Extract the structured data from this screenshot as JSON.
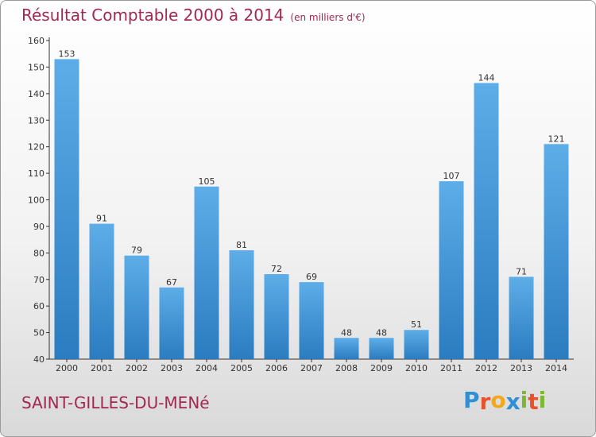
{
  "title": "Résultat Comptable 2000 à 2014",
  "unit": "(en milliers d'€)",
  "place": "SAINT-GILLES-DU-MENé",
  "logo": {
    "letters": [
      "P",
      "r",
      "o",
      "x",
      "i",
      "t",
      "i"
    ],
    "colors": [
      "#2f8fd6",
      "#e8512b",
      "#f2a81d",
      "#2f8fd6",
      "#7cb82f",
      "#e8512b",
      "#7cb82f"
    ]
  },
  "colors": {
    "bar_top": "#5dade8",
    "bar_bottom": "#2b7cc0",
    "title": "#a3284f"
  },
  "chart_data": {
    "type": "bar",
    "categories": [
      "2000",
      "2001",
      "2002",
      "2003",
      "2004",
      "2005",
      "2006",
      "2007",
      "2008",
      "2009",
      "2010",
      "2011",
      "2012",
      "2013",
      "2014"
    ],
    "values": [
      153,
      91,
      79,
      67,
      105,
      81,
      72,
      69,
      48,
      48,
      51,
      107,
      144,
      71,
      121
    ],
    "ylim": [
      40,
      160
    ],
    "yticks": [
      40,
      50,
      60,
      70,
      80,
      90,
      100,
      110,
      120,
      130,
      140,
      150,
      160
    ],
    "grid": false
  }
}
